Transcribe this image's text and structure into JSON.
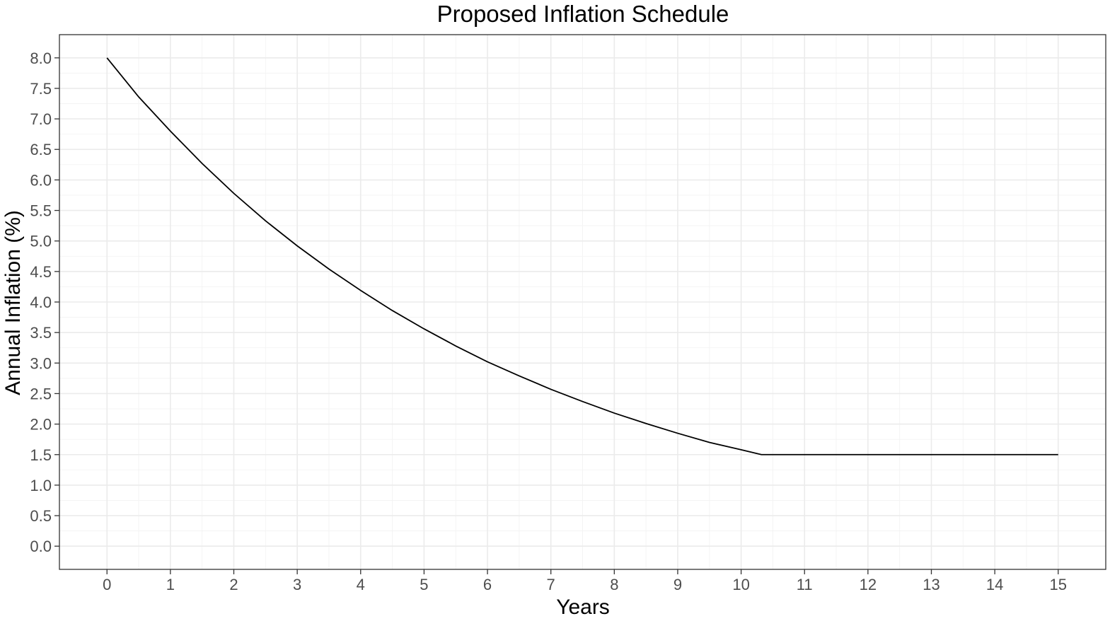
{
  "chart_data": {
    "type": "line",
    "title": "Proposed Inflation Schedule",
    "xlabel": "Years",
    "ylabel": "Annual Inflation (%)",
    "xlim": [
      -0.75,
      15.75
    ],
    "ylim": [
      -0.38,
      8.38
    ],
    "x_ticks": [
      0,
      1,
      2,
      3,
      4,
      5,
      6,
      7,
      8,
      9,
      10,
      11,
      12,
      13,
      14,
      15
    ],
    "x_tick_labels": [
      "0",
      "1",
      "2",
      "3",
      "4",
      "5",
      "6",
      "7",
      "8",
      "9",
      "10",
      "11",
      "12",
      "13",
      "14",
      "15"
    ],
    "y_ticks": [
      0,
      0.5,
      1,
      1.5,
      2,
      2.5,
      3,
      3.5,
      4,
      4.5,
      5,
      5.5,
      6,
      6.5,
      7,
      7.5,
      8
    ],
    "y_tick_labels": [
      "0.0",
      "0.5",
      "1.0",
      "1.5",
      "2.0",
      "2.5",
      "3.0",
      "3.5",
      "4.0",
      "4.5",
      "5.0",
      "5.5",
      "6.0",
      "6.5",
      "7.0",
      "7.5",
      "8.0"
    ],
    "grid": true,
    "legend": "none",
    "series": [
      {
        "color": "#000000",
        "x": [
          0,
          0.5,
          1,
          1.5,
          2,
          2.5,
          3,
          3.5,
          4,
          4.5,
          5,
          5.5,
          6,
          6.5,
          7,
          7.5,
          8,
          8.5,
          9,
          9.5,
          10,
          10.32,
          11,
          12,
          13,
          14,
          15
        ],
        "y": [
          8.0,
          7.36,
          6.8,
          6.27,
          5.78,
          5.33,
          4.92,
          4.54,
          4.19,
          3.86,
          3.56,
          3.28,
          3.02,
          2.79,
          2.57,
          2.37,
          2.18,
          2.01,
          1.85,
          1.7,
          1.58,
          1.5,
          1.5,
          1.5,
          1.5,
          1.5,
          1.5
        ]
      }
    ]
  }
}
